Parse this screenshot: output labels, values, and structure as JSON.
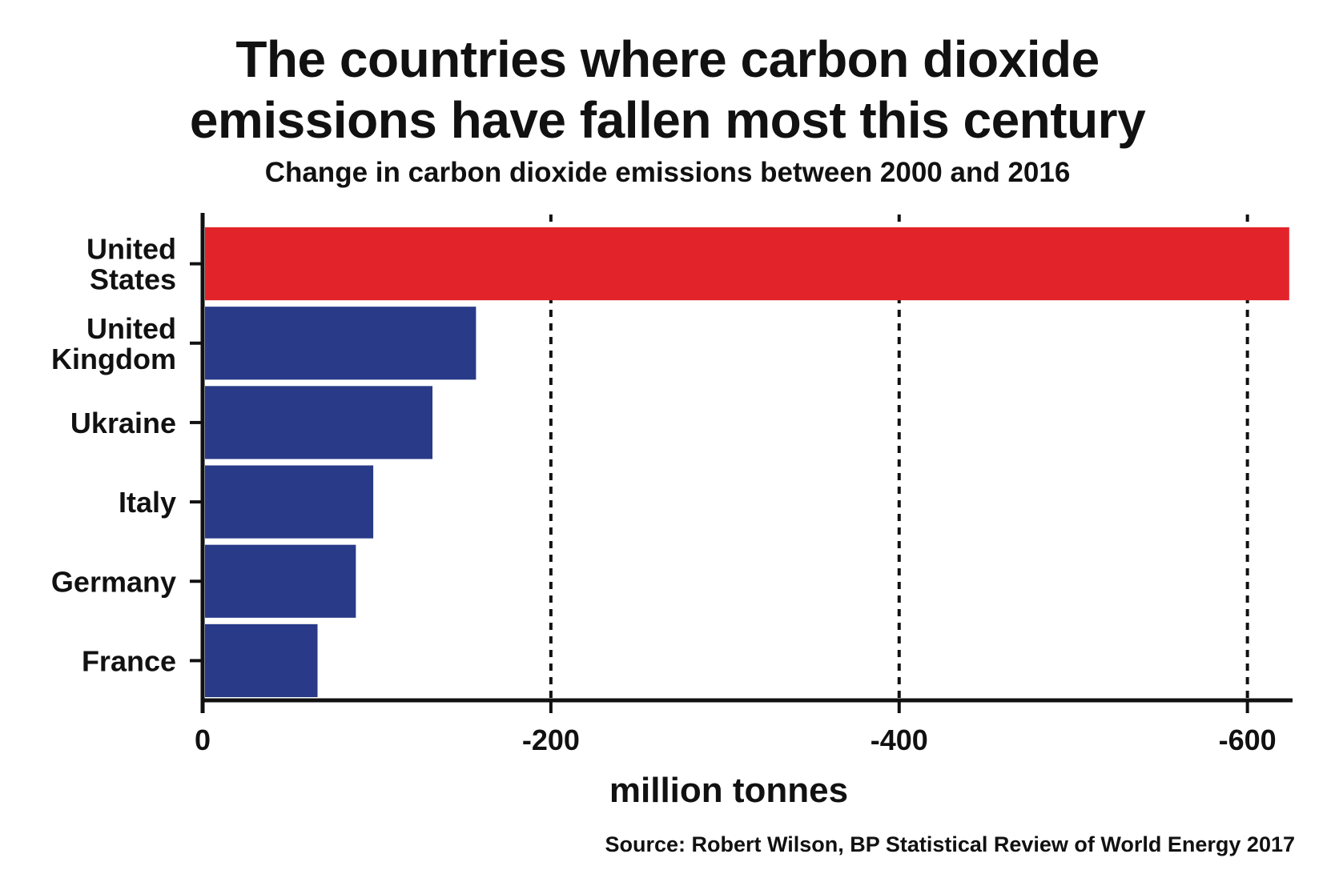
{
  "chart_data": {
    "type": "bar",
    "orientation": "horizontal",
    "title_lines": [
      "The countries where carbon dioxide",
      "emissions have fallen most this century"
    ],
    "subtitle": "Change in carbon dioxide emissions between 2000 and 2016",
    "xlabel": "million tonnes",
    "ylabel": "",
    "xlim": [
      0,
      -625
    ],
    "xticks": [
      0,
      -200,
      -400,
      -600
    ],
    "xtick_labels": [
      "0",
      "-200",
      "-400",
      "-600"
    ],
    "grid": "vertical dashed at -200, -400, -600",
    "categories": [
      "United States",
      "United Kingdom",
      "Ukraine",
      "Italy",
      "Germany",
      "France"
    ],
    "category_labels": [
      [
        "United",
        "States"
      ],
      [
        "United",
        "Kingdom"
      ],
      [
        "Ukraine"
      ],
      [
        "Italy"
      ],
      [
        "Germany"
      ],
      [
        "France"
      ]
    ],
    "values": [
      -624,
      -157,
      -132,
      -98,
      -88,
      -66
    ],
    "colors": [
      "#e3232a",
      "#283a88",
      "#283a88",
      "#283a88",
      "#283a88",
      "#283a88"
    ],
    "source": "Source: Robert Wilson, BP Statistical Review of World Energy 2017"
  }
}
